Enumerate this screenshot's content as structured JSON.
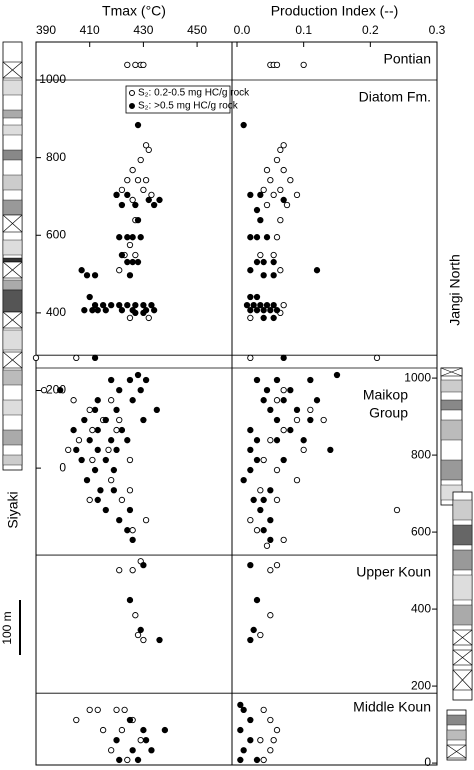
{
  "chart_data": [
    {
      "type": "scatter",
      "xlabel": "Tmax (°C)",
      "xlim": [
        390,
        463
      ],
      "xticks": [
        390,
        410,
        430,
        450
      ],
      "ylim": [
        -765,
        1098
      ],
      "yticks": [
        0,
        200,
        400,
        600,
        800,
        1000
      ],
      "legend": "upper right",
      "boundaries": [
        1000,
        291,
        258,
        -224,
        -580
      ],
      "annotations": [
        "Siyaki",
        "Jangi North",
        "100 m"
      ],
      "series": [
        {
          "name": "S₂: 0.2-0.5 mg HC/g rock",
          "marker": "open",
          "color": "#000000",
          "x": [
            424,
            427,
            429,
            430,
            431,
            432,
            429,
            426,
            424,
            428,
            431,
            422,
            430,
            433,
            426,
            420,
            427,
            425,
            423,
            427,
            421,
            425,
            432,
            390,
            405,
            393,
            404,
            418,
            410,
            415,
            421,
            411,
            406,
            420,
            402,
            417,
            425,
            411,
            418,
            425,
            410,
            422,
            431,
            426,
            421,
            426,
            429,
            427,
            428,
            430,
            410,
            413,
            405,
            420,
            423,
            426,
            415,
            422,
            418,
            429,
            424
          ],
          "y": [
            1039,
            1039,
            1039,
            1039,
            832,
            820,
            794,
            768,
            742,
            742,
            742,
            717,
            717,
            704,
            691,
            704,
            639,
            575,
            549,
            549,
            510,
            387,
            387,
            284,
            284,
            201,
            175,
            175,
            150,
            124,
            124,
            98,
            72,
            98,
            47,
            47,
            21,
            21,
            -31,
            -57,
            -82,
            -82,
            -134,
            -160,
            -263,
            -263,
            -240,
            -379,
            -430,
            -443,
            -623,
            -623,
            -649,
            -623,
            -623,
            -649,
            -675,
            -675,
            -727,
            -701,
            -752
          ]
        },
        {
          "name": "S₂: >0.5 mg HC/g rock",
          "marker": "filled",
          "color": "#000000",
          "x": [
            428,
            424,
            432,
            436,
            427,
            434,
            422,
            420,
            428,
            421,
            424,
            426,
            429,
            424,
            426,
            428,
            422,
            407,
            409,
            412,
            425,
            410,
            412,
            415,
            418,
            421,
            424,
            427,
            430,
            433,
            408,
            411,
            413,
            416,
            422,
            426,
            431,
            434,
            427,
            430,
            412,
            428,
            425,
            418,
            431,
            399,
            421,
            429,
            413,
            426,
            412,
            420,
            435,
            408,
            416,
            430,
            404,
            413,
            422,
            410,
            418,
            424,
            405,
            413,
            420,
            407,
            416,
            412,
            419,
            409,
            414,
            419,
            413,
            416,
            425,
            421,
            424,
            426,
            430,
            425,
            429,
            436,
            425,
            430,
            438,
            420,
            426,
            433,
            431,
            421,
            428
          ],
          "y": [
            884,
            704,
            691,
            691,
            678,
            678,
            678,
            704,
            639,
            595,
            595,
            595,
            595,
            531,
            531,
            531,
            549,
            510,
            497,
            497,
            497,
            441,
            420,
            420,
            420,
            420,
            420,
            420,
            420,
            420,
            407,
            407,
            407,
            407,
            407,
            407,
            407,
            407,
            400,
            400,
            284,
            240,
            227,
            227,
            227,
            201,
            201,
            201,
            175,
            175,
            150,
            150,
            150,
            124,
            124,
            124,
            98,
            98,
            98,
            72,
            72,
            72,
            47,
            47,
            47,
            21,
            21,
            -5,
            -5,
            -31,
            -57,
            -57,
            -82,
            -108,
            -108,
            -134,
            -160,
            -185,
            -250,
            -340,
            -417,
            -443,
            -649,
            -675,
            -675,
            -701,
            -727,
            -727,
            -701,
            -752,
            -752
          ]
        }
      ]
    },
    {
      "type": "scatter",
      "xlabel": "Production Index (--)",
      "xlim": [
        -0.0075,
        0.3
      ],
      "xticks": [
        {
          "value": 0,
          "label": "0.0"
        },
        0.1,
        0.2,
        0.3
      ],
      "ylim": [
        -765,
        1098
      ],
      "y2lim": [
        -5,
        1873
      ],
      "y2ticks": [
        0,
        200,
        400,
        600,
        800,
        1000
      ],
      "annotations": [
        "Pontian",
        "Diatom Fm.",
        "Maikop",
        "Group",
        "Upper Koun",
        "Middle Koun"
      ],
      "series": [
        {
          "marker": "open",
          "color": "#000000",
          "x": [
            0.05,
            0.055,
            0.06,
            0.1,
            0.07,
            0.065,
            0.06,
            0.045,
            0.07,
            0.05,
            0.08,
            0.04,
            0.065,
            0.055,
            0.09,
            0.045,
            0.075,
            0.065,
            0.06,
            0.055,
            0.035,
            0.065,
            0.07,
            0.065,
            0.02,
            0.02,
            0.21,
            0.07,
            0.06,
            0.11,
            0.09,
            0.13,
            0.07,
            0.05,
            0.1,
            0.04,
            0.06,
            0.09,
            0.035,
            0.06,
            0.02,
            0.03,
            0.07,
            0.045,
            0.24,
            0.05,
            0.06,
            0.05,
            0.035,
            0.04,
            0.05,
            0.06,
            0.035,
            0.05,
            0.04,
            0.055
          ],
          "y": [
            1039,
            1039,
            1039,
            1039,
            832,
            820,
            794,
            768,
            768,
            742,
            742,
            717,
            717,
            704,
            704,
            678,
            678,
            639,
            595,
            549,
            549,
            510,
            420,
            400,
            387,
            284,
            284,
            201,
            175,
            150,
            124,
            124,
            98,
            72,
            47,
            21,
            -5,
            -31,
            -57,
            -82,
            -134,
            -160,
            -185,
            -200,
            -108,
            -263,
            -250,
            -379,
            -430,
            -623,
            -649,
            -675,
            -701,
            -727,
            -752,
            -701
          ]
        },
        {
          "marker": "filled",
          "color": "#000000",
          "x": [
            0.01,
            0.02,
            0.035,
            0.07,
            0.03,
            0.035,
            0.02,
            0.03,
            0.045,
            0.03,
            0.04,
            0.055,
            0.02,
            0.04,
            0.055,
            0.12,
            0.02,
            0.03,
            0.015,
            0.025,
            0.035,
            0.045,
            0.055,
            0.02,
            0.03,
            0.04,
            0.05,
            0.06,
            0.04,
            0.055,
            0.07,
            0.15,
            0.03,
            0.06,
            0.11,
            0.045,
            0.08,
            0.04,
            0.07,
            0.12,
            0.05,
            0.09,
            0.11,
            0.06,
            0.02,
            0.08,
            0.03,
            0.06,
            0.1,
            0.14,
            0.02,
            0.03,
            0.07,
            0.02,
            0.01,
            0.05,
            0.025,
            0.04,
            0.035,
            0.05,
            0.04,
            0.05,
            0.02,
            0.03,
            0.025,
            0.02,
            0.005,
            0.01,
            0.02,
            0.005,
            0.02,
            0.01,
            0.03,
            0.005
          ],
          "y": [
            884,
            704,
            704,
            691,
            665,
            639,
            595,
            595,
            595,
            531,
            531,
            531,
            510,
            497,
            497,
            510,
            441,
            441,
            420,
            420,
            420,
            420,
            420,
            407,
            407,
            407,
            407,
            407,
            387,
            387,
            284,
            240,
            227,
            227,
            227,
            201,
            201,
            175,
            175,
            175,
            150,
            150,
            124,
            124,
            98,
            98,
            72,
            72,
            72,
            47,
            47,
            21,
            21,
            -5,
            -31,
            -57,
            -82,
            -82,
            -108,
            -134,
            -160,
            -185,
            -250,
            -340,
            -417,
            -443,
            -610,
            -623,
            -649,
            -675,
            -701,
            -727,
            -752,
            -752
          ]
        }
      ]
    }
  ]
}
